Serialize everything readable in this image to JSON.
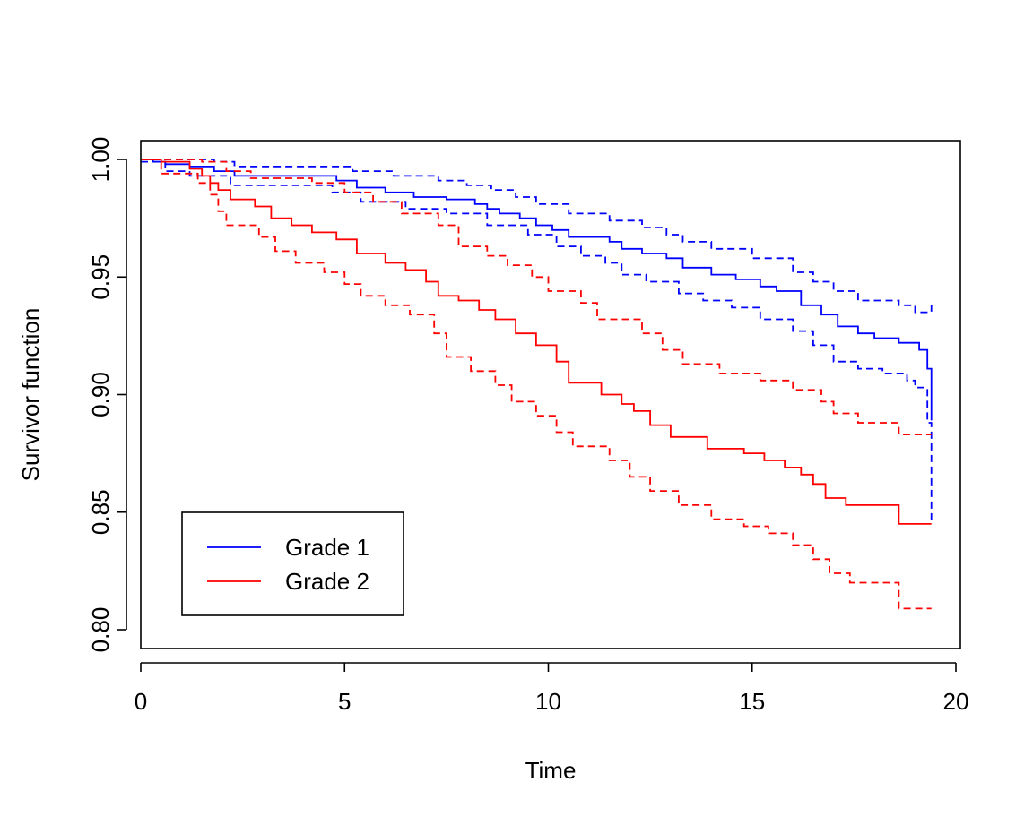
{
  "chart_data": {
    "type": "line",
    "title": "",
    "xlabel": "Time",
    "ylabel": "Survivor function",
    "xlim": [
      0,
      20
    ],
    "ylim": [
      0.8,
      1.0
    ],
    "xticks": [
      0,
      5,
      10,
      15,
      20
    ],
    "xtick_labels": [
      "0",
      "5",
      "10",
      "15",
      "20"
    ],
    "yticks": [
      0.8,
      0.85,
      0.9,
      0.95,
      1.0
    ],
    "ytick_labels": [
      "0.80",
      "0.85",
      "0.90",
      "0.95",
      "1.00"
    ],
    "legend": {
      "position": "bottom-left",
      "entries": [
        {
          "label": "Grade 1",
          "color": "#0000ff"
        },
        {
          "label": "Grade 2",
          "color": "#ff0000"
        }
      ]
    },
    "series": [
      {
        "name": "Grade 1",
        "role": "estimate",
        "color": "#0000ff",
        "style": "solid",
        "steps": [
          [
            0,
            1.0
          ],
          [
            0.3,
            0.999
          ],
          [
            0.6,
            0.998
          ],
          [
            1.2,
            0.997
          ],
          [
            1.8,
            0.995
          ],
          [
            2.3,
            0.993
          ],
          [
            4.8,
            0.991
          ],
          [
            5.3,
            0.988
          ],
          [
            6.0,
            0.986
          ],
          [
            6.7,
            0.984
          ],
          [
            7.5,
            0.983
          ],
          [
            8.2,
            0.981
          ],
          [
            8.5,
            0.979
          ],
          [
            8.8,
            0.977
          ],
          [
            9.3,
            0.975
          ],
          [
            9.7,
            0.972
          ],
          [
            10.1,
            0.97
          ],
          [
            10.5,
            0.967
          ],
          [
            11.5,
            0.965
          ],
          [
            11.8,
            0.962
          ],
          [
            12.3,
            0.96
          ],
          [
            12.9,
            0.958
          ],
          [
            13.3,
            0.954
          ],
          [
            14.0,
            0.951
          ],
          [
            14.6,
            0.949
          ],
          [
            15.2,
            0.946
          ],
          [
            15.6,
            0.944
          ],
          [
            16.2,
            0.938
          ],
          [
            16.7,
            0.934
          ],
          [
            17.1,
            0.929
          ],
          [
            17.6,
            0.926
          ],
          [
            18.0,
            0.924
          ],
          [
            18.6,
            0.922
          ],
          [
            19.1,
            0.919
          ],
          [
            19.3,
            0.911
          ],
          [
            19.4,
            0.889
          ]
        ],
        "x_end": 19.4
      },
      {
        "name": "Grade 1 upper CI",
        "role": "confidence-bound",
        "color": "#0000ff",
        "style": "dashed",
        "steps": [
          [
            0,
            1.0
          ],
          [
            1.8,
            0.999
          ],
          [
            2.3,
            0.997
          ],
          [
            5.2,
            0.995
          ],
          [
            6.2,
            0.993
          ],
          [
            7.3,
            0.991
          ],
          [
            8.0,
            0.989
          ],
          [
            8.6,
            0.987
          ],
          [
            9.2,
            0.984
          ],
          [
            9.7,
            0.981
          ],
          [
            10.5,
            0.977
          ],
          [
            11.5,
            0.974
          ],
          [
            12.3,
            0.971
          ],
          [
            12.9,
            0.968
          ],
          [
            13.3,
            0.965
          ],
          [
            14.0,
            0.962
          ],
          [
            15.0,
            0.958
          ],
          [
            16.0,
            0.952
          ],
          [
            16.5,
            0.948
          ],
          [
            17.0,
            0.944
          ],
          [
            17.6,
            0.94
          ],
          [
            18.6,
            0.938
          ],
          [
            19.0,
            0.935
          ],
          [
            19.4,
            0.938
          ]
        ],
        "x_end": 19.4
      },
      {
        "name": "Grade 1 lower CI",
        "role": "confidence-bound",
        "color": "#0000ff",
        "style": "dashed",
        "steps": [
          [
            0,
            0.999
          ],
          [
            0.6,
            0.995
          ],
          [
            1.2,
            0.993
          ],
          [
            2.2,
            0.989
          ],
          [
            4.7,
            0.986
          ],
          [
            5.4,
            0.982
          ],
          [
            6.5,
            0.979
          ],
          [
            7.5,
            0.977
          ],
          [
            8.5,
            0.972
          ],
          [
            9.5,
            0.968
          ],
          [
            10.2,
            0.963
          ],
          [
            10.8,
            0.959
          ],
          [
            11.4,
            0.956
          ],
          [
            11.8,
            0.951
          ],
          [
            12.4,
            0.948
          ],
          [
            13.2,
            0.943
          ],
          [
            13.8,
            0.94
          ],
          [
            14.5,
            0.937
          ],
          [
            15.2,
            0.932
          ],
          [
            16.0,
            0.927
          ],
          [
            16.5,
            0.921
          ],
          [
            17.0,
            0.914
          ],
          [
            17.6,
            0.911
          ],
          [
            18.2,
            0.909
          ],
          [
            18.8,
            0.906
          ],
          [
            19.0,
            0.903
          ],
          [
            19.3,
            0.888
          ],
          [
            19.4,
            0.845
          ]
        ],
        "x_end": 19.4
      },
      {
        "name": "Grade 2",
        "role": "estimate",
        "color": "#ff0000",
        "style": "solid",
        "steps": [
          [
            0,
            1.0
          ],
          [
            0.5,
            0.999
          ],
          [
            1.2,
            0.996
          ],
          [
            1.5,
            0.993
          ],
          [
            1.7,
            0.99
          ],
          [
            1.9,
            0.987
          ],
          [
            2.2,
            0.983
          ],
          [
            2.8,
            0.98
          ],
          [
            3.2,
            0.975
          ],
          [
            3.7,
            0.972
          ],
          [
            4.2,
            0.969
          ],
          [
            4.8,
            0.966
          ],
          [
            5.3,
            0.96
          ],
          [
            6.0,
            0.956
          ],
          [
            6.5,
            0.953
          ],
          [
            7.0,
            0.948
          ],
          [
            7.3,
            0.942
          ],
          [
            7.8,
            0.94
          ],
          [
            8.3,
            0.936
          ],
          [
            8.7,
            0.932
          ],
          [
            9.2,
            0.926
          ],
          [
            9.7,
            0.921
          ],
          [
            10.2,
            0.914
          ],
          [
            10.5,
            0.905
          ],
          [
            11.3,
            0.9
          ],
          [
            11.8,
            0.896
          ],
          [
            12.1,
            0.893
          ],
          [
            12.5,
            0.887
          ],
          [
            13.0,
            0.882
          ],
          [
            13.9,
            0.877
          ],
          [
            14.8,
            0.875
          ],
          [
            15.3,
            0.872
          ],
          [
            15.8,
            0.869
          ],
          [
            16.2,
            0.866
          ],
          [
            16.5,
            0.862
          ],
          [
            16.8,
            0.856
          ],
          [
            17.3,
            0.853
          ],
          [
            18.6,
            0.845
          ]
        ],
        "x_end": 19.4
      },
      {
        "name": "Grade 2 upper CI",
        "role": "confidence-bound",
        "color": "#ff0000",
        "style": "dashed",
        "steps": [
          [
            0,
            1.0
          ],
          [
            1.5,
            0.999
          ],
          [
            2.1,
            0.995
          ],
          [
            2.7,
            0.992
          ],
          [
            4.2,
            0.99
          ],
          [
            5.0,
            0.986
          ],
          [
            5.7,
            0.982
          ],
          [
            6.4,
            0.977
          ],
          [
            7.3,
            0.972
          ],
          [
            7.8,
            0.963
          ],
          [
            8.5,
            0.959
          ],
          [
            9.0,
            0.955
          ],
          [
            9.6,
            0.95
          ],
          [
            10.0,
            0.944
          ],
          [
            10.8,
            0.939
          ],
          [
            11.2,
            0.932
          ],
          [
            12.3,
            0.926
          ],
          [
            12.8,
            0.919
          ],
          [
            13.3,
            0.913
          ],
          [
            14.2,
            0.909
          ],
          [
            15.2,
            0.906
          ],
          [
            16.0,
            0.902
          ],
          [
            16.7,
            0.897
          ],
          [
            17.0,
            0.892
          ],
          [
            17.6,
            0.888
          ],
          [
            18.6,
            0.883
          ]
        ],
        "x_end": 19.4
      },
      {
        "name": "Grade 2 lower CI",
        "role": "confidence-bound",
        "color": "#ff0000",
        "style": "dashed",
        "steps": [
          [
            0,
            1.0
          ],
          [
            0.5,
            0.994
          ],
          [
            1.4,
            0.99
          ],
          [
            1.7,
            0.985
          ],
          [
            1.9,
            0.978
          ],
          [
            2.1,
            0.972
          ],
          [
            2.9,
            0.967
          ],
          [
            3.3,
            0.961
          ],
          [
            3.8,
            0.956
          ],
          [
            4.5,
            0.952
          ],
          [
            5.0,
            0.947
          ],
          [
            5.4,
            0.942
          ],
          [
            6.0,
            0.938
          ],
          [
            6.6,
            0.934
          ],
          [
            7.2,
            0.926
          ],
          [
            7.5,
            0.916
          ],
          [
            8.1,
            0.91
          ],
          [
            8.7,
            0.904
          ],
          [
            9.1,
            0.897
          ],
          [
            9.7,
            0.891
          ],
          [
            10.2,
            0.884
          ],
          [
            10.6,
            0.878
          ],
          [
            11.5,
            0.872
          ],
          [
            12.0,
            0.865
          ],
          [
            12.5,
            0.859
          ],
          [
            13.2,
            0.853
          ],
          [
            14.0,
            0.847
          ],
          [
            14.8,
            0.844
          ],
          [
            15.4,
            0.841
          ],
          [
            16.0,
            0.836
          ],
          [
            16.5,
            0.83
          ],
          [
            16.9,
            0.824
          ],
          [
            17.4,
            0.82
          ],
          [
            18.6,
            0.809
          ]
        ],
        "x_end": 19.4
      }
    ]
  }
}
